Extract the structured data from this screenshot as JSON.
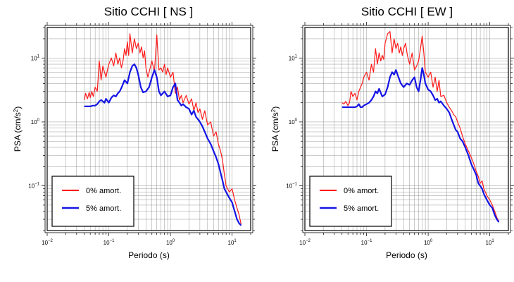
{
  "chart_data": [
    {
      "type": "line",
      "title": "Sitio CCHI [ NS ]",
      "xlabel": "Periodo (s)",
      "ylabel_base": "PSA (cm/s",
      "ylabel_sup": "2",
      "ylabel_end": ")",
      "xscale": "log",
      "yscale": "log",
      "xlim": [
        0.01,
        20
      ],
      "ylim": [
        0.02,
        30
      ],
      "xticks": [
        {
          "base": "10",
          "exp": "−2"
        },
        {
          "base": "10",
          "exp": "−1"
        },
        {
          "base": "10",
          "exp": "0"
        },
        {
          "base": "10",
          "exp": "1"
        }
      ],
      "yticks": [
        {
          "base": "10",
          "exp": "−1"
        },
        {
          "base": "10",
          "exp": "0"
        },
        {
          "base": "10",
          "exp": "1"
        }
      ],
      "grid": true,
      "legend_position": "bottom-left",
      "series": [
        {
          "name": "0% amort.",
          "color": "#ff1a1a",
          "x": [
            0.04,
            0.042,
            0.045,
            0.048,
            0.05,
            0.053,
            0.056,
            0.06,
            0.065,
            0.07,
            0.075,
            0.08,
            0.085,
            0.09,
            0.095,
            0.1,
            0.11,
            0.12,
            0.13,
            0.14,
            0.15,
            0.16,
            0.17,
            0.18,
            0.19,
            0.2,
            0.21,
            0.22,
            0.24,
            0.26,
            0.28,
            0.3,
            0.32,
            0.34,
            0.36,
            0.38,
            0.4,
            0.43,
            0.46,
            0.5,
            0.55,
            0.6,
            0.65,
            0.7,
            0.75,
            0.8,
            0.85,
            0.9,
            1.0,
            1.1,
            1.2,
            1.3,
            1.4,
            1.5,
            1.6,
            1.8,
            2.0,
            2.2,
            2.4,
            2.6,
            2.8,
            3.0,
            3.3,
            3.6,
            4.0,
            4.5,
            5.0,
            5.5,
            6.0,
            6.5,
            7.0,
            7.5,
            8.0,
            9.0,
            10.0,
            11.0,
            12.0,
            13.0,
            14.0
          ],
          "values": [
            2.2,
            2.8,
            2.3,
            2.9,
            2.4,
            3.0,
            2.5,
            3.5,
            3.0,
            9.0,
            4.5,
            7.5,
            6.0,
            5.0,
            6.5,
            8.0,
            10.0,
            7.5,
            12.0,
            8.0,
            10.0,
            7.0,
            9.0,
            14.0,
            11.0,
            18.0,
            11.0,
            24.0,
            12.0,
            20.0,
            14.0,
            17.0,
            12.0,
            15.0,
            10.0,
            13.0,
            7.0,
            5.0,
            6.5,
            9.0,
            6.0,
            23.0,
            6.5,
            7.0,
            6.0,
            8.0,
            5.5,
            7.0,
            5.0,
            6.0,
            2.8,
            3.5,
            2.2,
            2.6,
            2.0,
            2.6,
            1.9,
            2.3,
            1.5,
            2.0,
            1.4,
            1.6,
            1.1,
            1.5,
            0.9,
            1.0,
            0.6,
            0.7,
            0.45,
            0.35,
            0.25,
            0.15,
            0.1,
            0.08,
            0.09,
            0.06,
            0.045,
            0.035,
            0.025
          ]
        },
        {
          "name": "5% amort.",
          "color": "#1414e6",
          "x": [
            0.04,
            0.045,
            0.05,
            0.055,
            0.06,
            0.065,
            0.07,
            0.075,
            0.08,
            0.085,
            0.09,
            0.1,
            0.11,
            0.12,
            0.13,
            0.14,
            0.15,
            0.16,
            0.18,
            0.2,
            0.22,
            0.24,
            0.26,
            0.28,
            0.3,
            0.33,
            0.36,
            0.4,
            0.45,
            0.5,
            0.55,
            0.6,
            0.65,
            0.7,
            0.75,
            0.8,
            0.9,
            1.0,
            1.1,
            1.2,
            1.3,
            1.4,
            1.5,
            1.6,
            1.8,
            2.0,
            2.2,
            2.4,
            2.6,
            2.8,
            3.0,
            3.3,
            3.6,
            4.0,
            4.5,
            5.0,
            5.5,
            6.0,
            6.5,
            7.0,
            7.5,
            8.0,
            9.0,
            10.0,
            11.0,
            12.0,
            13.0,
            14.0
          ],
          "values": [
            1.75,
            1.75,
            1.75,
            1.8,
            1.8,
            1.9,
            2.1,
            2.2,
            2.1,
            2.0,
            2.3,
            2.0,
            2.4,
            2.6,
            2.5,
            2.8,
            3.0,
            3.4,
            4.5,
            4.0,
            6.0,
            7.5,
            8.0,
            7.0,
            5.5,
            3.5,
            2.9,
            3.0,
            3.5,
            5.0,
            6.5,
            5.0,
            3.0,
            2.6,
            2.8,
            3.0,
            2.5,
            2.6,
            3.5,
            4.0,
            2.2,
            2.0,
            1.8,
            1.9,
            1.7,
            1.6,
            1.3,
            1.5,
            1.2,
            1.1,
            1.0,
            0.85,
            0.7,
            0.55,
            0.45,
            0.35,
            0.28,
            0.22,
            0.16,
            0.12,
            0.09,
            0.08,
            0.065,
            0.055,
            0.04,
            0.03,
            0.026,
            0.024
          ]
        }
      ]
    },
    {
      "type": "line",
      "title": "Sitio CCHI [ EW ]",
      "xlabel": "Periodo (s)",
      "ylabel_base": "PSA (cm/s",
      "ylabel_sup": "2",
      "ylabel_end": ")",
      "xscale": "log",
      "yscale": "log",
      "xlim": [
        0.01,
        20
      ],
      "ylim": [
        0.02,
        30
      ],
      "xticks": [
        {
          "base": "10",
          "exp": "−2"
        },
        {
          "base": "10",
          "exp": "−1"
        },
        {
          "base": "10",
          "exp": "0"
        },
        {
          "base": "10",
          "exp": "1"
        }
      ],
      "yticks": [
        {
          "base": "10",
          "exp": "−1"
        },
        {
          "base": "10",
          "exp": "0"
        },
        {
          "base": "10",
          "exp": "1"
        }
      ],
      "grid": true,
      "legend_position": "bottom-left",
      "series": [
        {
          "name": "0% amort.",
          "color": "#ff1a1a",
          "x": [
            0.04,
            0.043,
            0.046,
            0.05,
            0.053,
            0.056,
            0.06,
            0.065,
            0.07,
            0.075,
            0.08,
            0.085,
            0.09,
            0.1,
            0.11,
            0.12,
            0.13,
            0.14,
            0.15,
            0.16,
            0.17,
            0.18,
            0.19,
            0.2,
            0.22,
            0.24,
            0.26,
            0.28,
            0.3,
            0.32,
            0.34,
            0.36,
            0.38,
            0.4,
            0.43,
            0.46,
            0.5,
            0.55,
            0.6,
            0.65,
            0.7,
            0.75,
            0.8,
            0.85,
            0.9,
            1.0,
            1.1,
            1.2,
            1.3,
            1.4,
            1.5,
            1.6,
            1.8,
            2.0,
            2.2,
            2.4,
            2.6,
            2.8,
            3.0,
            3.3,
            3.6,
            4.0,
            4.5,
            5.0,
            5.5,
            6.0,
            6.5,
            7.0,
            7.5,
            8.0,
            9.0,
            10.0,
            11.0,
            12.0,
            13.0,
            14.0
          ],
          "values": [
            2.0,
            1.9,
            2.1,
            1.8,
            2.0,
            3.0,
            2.5,
            2.8,
            2.2,
            3.0,
            3.5,
            4.0,
            5.0,
            6.0,
            4.5,
            8.0,
            6.0,
            14.0,
            8.0,
            12.0,
            9.0,
            11.0,
            9.5,
            17.0,
            24.0,
            26.0,
            12.0,
            20.0,
            14.0,
            17.0,
            12.0,
            15.0,
            11.0,
            14.0,
            17.0,
            11.0,
            8.0,
            12.0,
            6.5,
            7.5,
            9.0,
            14.0,
            22.0,
            12.0,
            6.0,
            5.0,
            6.0,
            3.5,
            5.0,
            3.0,
            4.5,
            2.5,
            2.6,
            2.0,
            1.7,
            1.5,
            1.3,
            1.2,
            1.0,
            0.8,
            0.6,
            0.45,
            0.35,
            0.28,
            0.22,
            0.17,
            0.14,
            0.11,
            0.12,
            0.09,
            0.07,
            0.06,
            0.05,
            0.04,
            0.032,
            0.028
          ]
        },
        {
          "name": "5% amort.",
          "color": "#1414e6",
          "x": [
            0.04,
            0.045,
            0.05,
            0.055,
            0.06,
            0.065,
            0.07,
            0.075,
            0.08,
            0.085,
            0.09,
            0.1,
            0.11,
            0.12,
            0.13,
            0.14,
            0.15,
            0.16,
            0.18,
            0.2,
            0.22,
            0.24,
            0.26,
            0.28,
            0.3,
            0.33,
            0.36,
            0.4,
            0.45,
            0.5,
            0.55,
            0.6,
            0.65,
            0.7,
            0.75,
            0.8,
            0.85,
            0.9,
            1.0,
            1.1,
            1.2,
            1.3,
            1.4,
            1.5,
            1.6,
            1.8,
            2.0,
            2.2,
            2.4,
            2.6,
            2.8,
            3.0,
            3.3,
            3.6,
            4.0,
            4.5,
            5.0,
            5.5,
            6.0,
            6.5,
            7.0,
            7.5,
            8.0,
            9.0,
            10.0,
            11.0,
            12.0,
            13.0,
            14.0
          ],
          "values": [
            1.7,
            1.7,
            1.7,
            1.7,
            1.7,
            1.7,
            1.75,
            1.9,
            1.7,
            1.7,
            1.8,
            1.9,
            2.0,
            2.2,
            2.5,
            3.0,
            2.8,
            3.3,
            2.5,
            2.7,
            3.5,
            5.0,
            6.0,
            5.5,
            6.5,
            5.0,
            4.0,
            3.5,
            4.0,
            3.8,
            4.5,
            5.0,
            3.5,
            3.0,
            4.5,
            7.0,
            5.5,
            4.0,
            3.2,
            3.0,
            2.6,
            2.2,
            2.3,
            2.0,
            2.1,
            1.8,
            1.6,
            1.4,
            1.1,
            0.9,
            0.75,
            0.7,
            0.55,
            0.5,
            0.4,
            0.3,
            0.22,
            0.18,
            0.15,
            0.11,
            0.1,
            0.09,
            0.075,
            0.06,
            0.05,
            0.045,
            0.035,
            0.03,
            0.027
          ]
        }
      ]
    }
  ]
}
